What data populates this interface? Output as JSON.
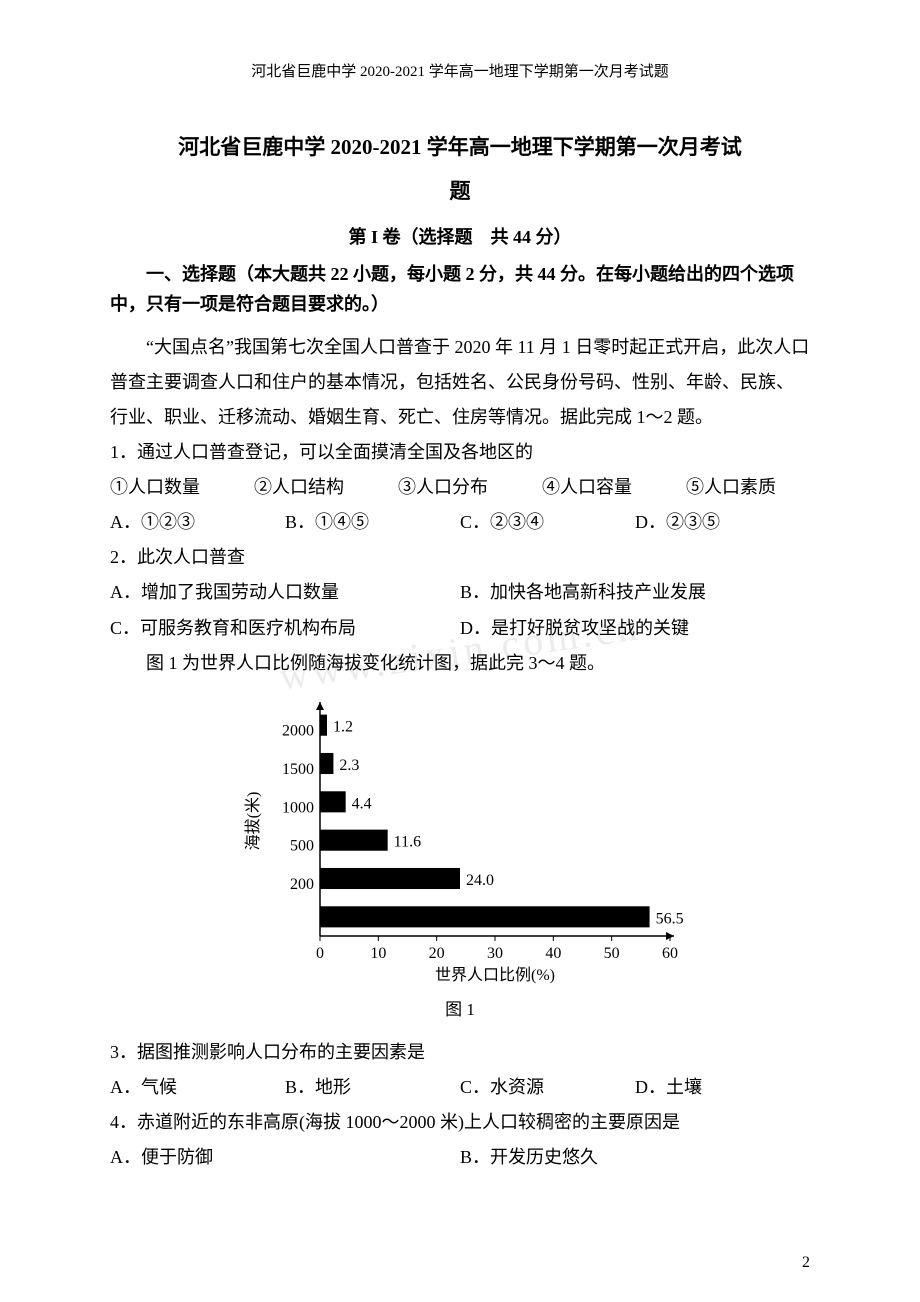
{
  "header": "河北省巨鹿中学 2020-2021 学年高一地理下学期第一次月考试题",
  "title_line1": "河北省巨鹿中学 2020-2021 学年高一地理下学期第一次月考试",
  "title_line2": "题",
  "section_i": "第 I 卷（选择题　共 44 分）",
  "instruction": "一、选择题（本大题共 22 小题，每小题 2 分，共 44 分。在每小题给出的四个选项中，只有一项是符合题目要求的。）",
  "passage1": "“大国点名”我国第七次全国人口普查于 2020 年 11 月 1 日零时起正式开启，此次人口普查主要调查人口和住户的基本情况，包括姓名、公民身份号码、性别、年龄、民族、行业、职业、迁移流动、婚姻生育、死亡、住房等情况。据此完成 1～2 题。",
  "q1": {
    "stem": "1．通过人口普查登记，可以全面摸清全国及各地区的",
    "items": "①人口数量　　　②人口结构　　　③人口分布　　　④人口容量　　　⑤人口素质",
    "A": "A．①②③",
    "B": "B．①④⑤",
    "C": "C．②③④",
    "D": "D．②③⑤"
  },
  "q2": {
    "stem": "2．此次人口普查",
    "A": "A．增加了我国劳动人口数量",
    "B": "B．加快各地高新科技产业发展",
    "C": "C．可服务教育和医疗机构布局",
    "D": "D．是打好脱贫攻坚战的关键"
  },
  "passage2": "图 1 为世界人口比例随海拔变化统计图，据此完 3～4 题。",
  "chart": {
    "type": "bar-horizontal",
    "y_label": "海拔(米)",
    "x_label": "世界人口比例(%)",
    "y_categories": [
      "2000",
      "1500",
      "1000",
      "500",
      "200",
      ""
    ],
    "values": [
      1.2,
      2.3,
      4.4,
      11.6,
      24.0,
      56.5
    ],
    "value_labels": [
      "1.2",
      "2.3",
      "4.4",
      "11.6",
      "24.0",
      "56.5"
    ],
    "x_ticks": [
      "0",
      "10",
      "20",
      "30",
      "40",
      "50",
      "60"
    ],
    "bar_color": "#000000",
    "label_color": "#000000",
    "axis_color": "#000000",
    "caption": "图 1",
    "title_fontsize": 17,
    "label_fontsize": 16
  },
  "q3": {
    "stem": "3．据图推测影响人口分布的主要因素是",
    "A": "A．气候",
    "B": "B．地形",
    "C": "C．水资源",
    "D": "D．土壤"
  },
  "q4": {
    "stem": "4．赤道附近的东非高原(海拔 1000～2000 米)上人口较稠密的主要原因是",
    "A": "A．便于防御",
    "B": "B．开发历史悠久"
  },
  "watermark": "www.zixin.com.cn",
  "page_number": "2"
}
